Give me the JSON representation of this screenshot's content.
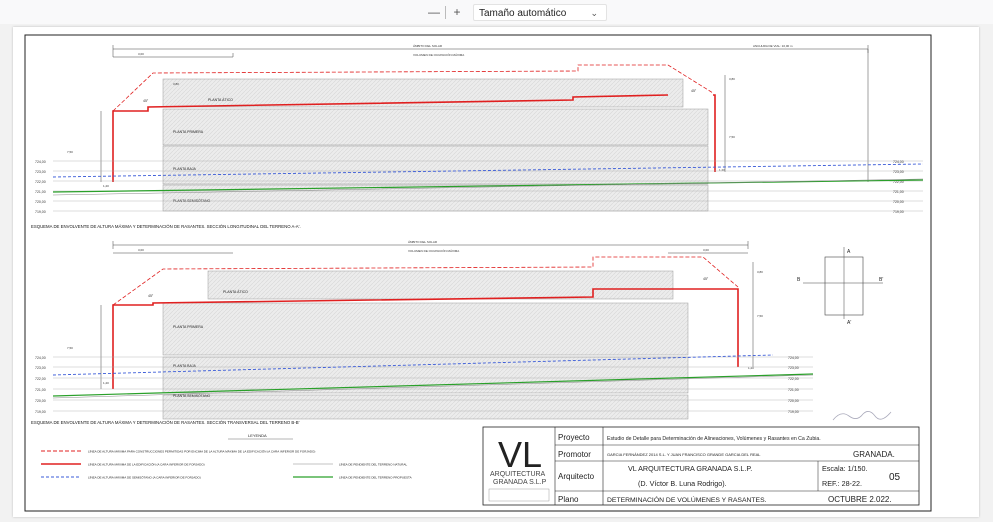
{
  "toolbar": {
    "zoom_out": "—",
    "zoom_in": "+",
    "zoom_label": "Tamaño automático"
  },
  "drawing": {
    "top_dim_label": "ÁMBITO DEL SOLAR",
    "top_volume_label": "VOLUMEN DE OCUPACIÓN MÁXIMA",
    "width_dim_label": "ANCHURA DE VIAL: 10,00 m",
    "dim_300": "3,00",
    "dim_750": "7,50",
    "dim_380": "3,80",
    "dim_120": "1,20",
    "angle_45": "45°",
    "floors": [
      "PLANTA ÁTICO",
      "PLANTA PRIMERA",
      "PLANTA BAJA",
      "PLANTA SEMISÓTANO"
    ],
    "levels": [
      "724,00",
      "723,00",
      "722,00",
      "721,00",
      "720,00",
      "719,00"
    ],
    "section_a_title": "ESQUEMA DE ENVOLVENTE DE ALTURA MÁXIMA Y DETERMINACIÓN DE RASANTES. SECCIÓN LONGITUDINAL DEL TERRENO A-A'.",
    "section_b_title": "ESQUEMA DE ENVOLVENTE DE ALTURA MÁXIMA Y DETERMINACIÓN DE RASANTES. SECCIÓN TRANSVERSAL DEL TERRENO B-B'",
    "key_a": "A",
    "key_a2": "A'",
    "key_b": "B",
    "key_b2": "B'"
  },
  "legend": {
    "title": "LEYENDA",
    "items": [
      "LÍNEA DE ALTURA MÁXIMA PARA CONSTRUCCIONES PERMITIDAS POR ENCIMA DE LA ALTURA MÁXIMA DE LA EDIFICACIÓN (A CARA INFERIOR DE FORJADO)",
      "LÍNEA DE ALTURA MÁXIMA DE LA EDIFICACIÓN (A CARA INFERIOR DE FORJADO)",
      "LÍNEA DE PENDIENTE DEL TERRENO NATURAL",
      "LÍNEA DE ALTURA MÁXIMA DE SEMISÓTANO (A CARA INFERIOR DE FORJADO)",
      "LÍNEA DE PENDIENTE DEL TERRENO PROPUESTA"
    ]
  },
  "title_block": {
    "logo": "VL",
    "logo_sub1": "ARQUITECTURA",
    "logo_sub2": "GRANADA S.L.P",
    "proyecto_label": "Proyecto",
    "proyecto": "Estudio de Detalle para Determinación de Alineaciones, Volúmenes y Rasantes en Ca Zubia.",
    "promotor_label": "Promotor",
    "promotor": "GARCIA FERNÁNDEZ 2014 S.L. Y JUAN FRANCISCO GRANDE GARCIA DEL REAL",
    "city": "GRANADA.",
    "arquitecto_label": "Arquitecto",
    "arquitecto1": "VL ARQUITECTURA GRANADA S.L.P.",
    "arquitecto2": "(D. Víctor B. Luna Rodrigo).",
    "escala": "Escala: 1/150.",
    "plano_num": "05",
    "ref": "REF.: 28-22.",
    "plano_label": "Plano",
    "plano": "DETERMINACIÓN DE VOLÚMENES Y RASANTES.",
    "fecha": "OCTUBRE 2.022."
  }
}
